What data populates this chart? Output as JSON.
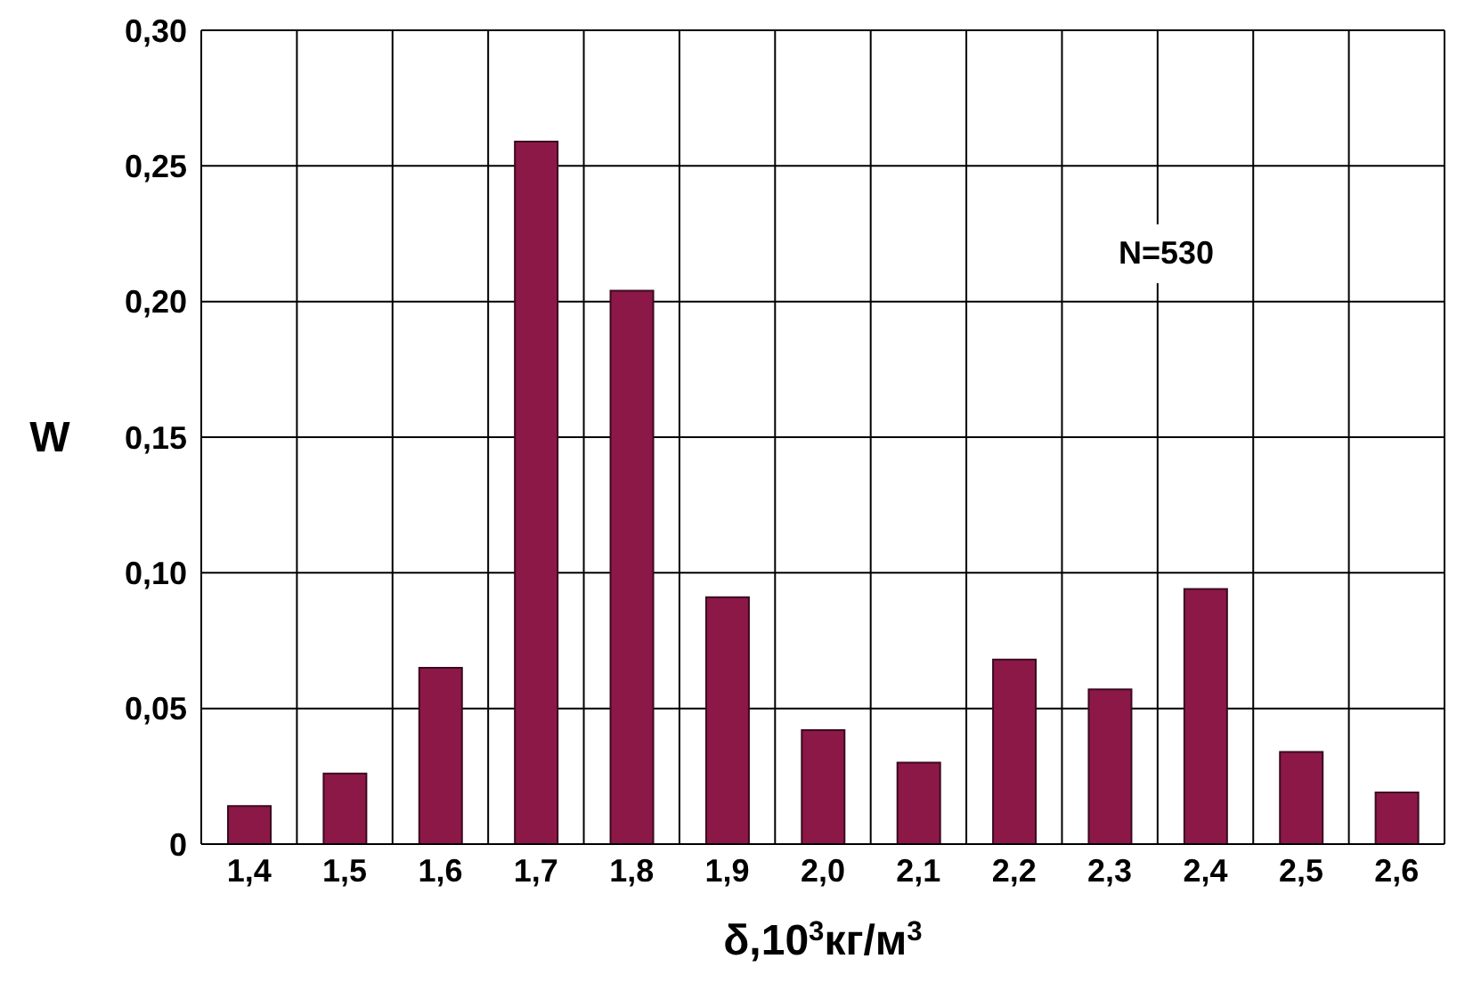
{
  "chart_data": {
    "type": "bar",
    "xlabel": "δ,10$^{3}$кг/м$^{3}$",
    "ylabel": "W",
    "categories": [
      "1,4",
      "1,5",
      "1,6",
      "1,7",
      "1,8",
      "1,9",
      "2,0",
      "2,1",
      "2,2",
      "2,3",
      "2,4",
      "2,5",
      "2,6"
    ],
    "values": [
      0.014,
      0.026,
      0.065,
      0.259,
      0.204,
      0.091,
      0.042,
      0.03,
      0.068,
      0.057,
      0.094,
      0.034,
      0.019
    ],
    "color": "#8c1848",
    "ylim": [
      0,
      0.3
    ],
    "yticks": [
      0,
      {
        "value": 0.05,
        "label": "0,05"
      },
      {
        "value": 0.1,
        "label": "0,10"
      },
      {
        "value": 0.15,
        "label": "0,15"
      },
      {
        "value": 0.2,
        "label": "0,20"
      },
      {
        "value": 0.25,
        "label": "0,25"
      },
      {
        "value": 0.3,
        "label": "0,30"
      }
    ],
    "grid": true,
    "annotations": [
      "N=530"
    ]
  }
}
